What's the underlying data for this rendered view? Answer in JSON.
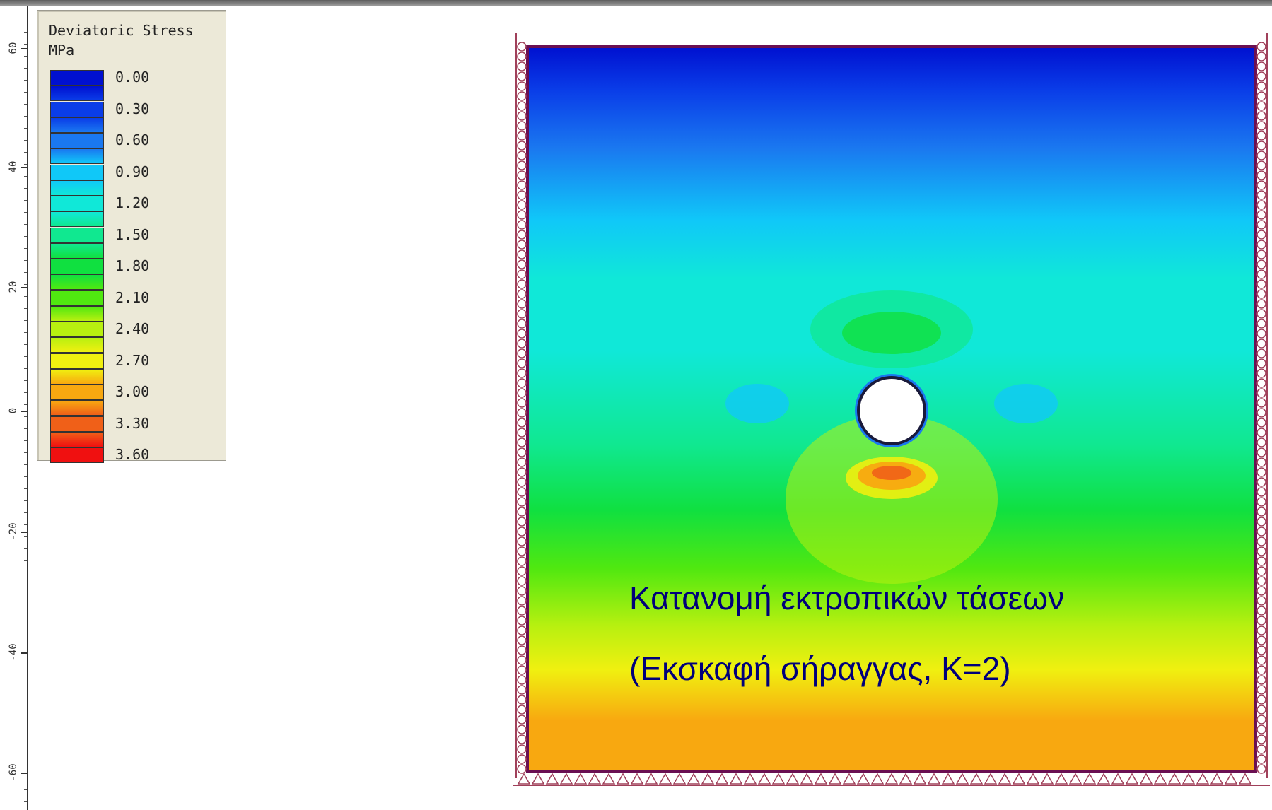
{
  "legend": {
    "title": "Deviatoric Stress",
    "unit": "MPa",
    "entries": [
      {
        "value": "0.00",
        "color": "#0010d0"
      },
      {
        "value": "0.30",
        "color": "#0a3de8"
      },
      {
        "value": "0.60",
        "color": "#1a78f0"
      },
      {
        "value": "0.90",
        "color": "#10c8f8"
      },
      {
        "value": "1.20",
        "color": "#10e8d8"
      },
      {
        "value": "1.50",
        "color": "#10e890"
      },
      {
        "value": "1.80",
        "color": "#10e040"
      },
      {
        "value": "2.10",
        "color": "#50e810"
      },
      {
        "value": "2.40",
        "color": "#b8f010"
      },
      {
        "value": "2.70",
        "color": "#f0f010"
      },
      {
        "value": "3.00",
        "color": "#f8a810"
      },
      {
        "value": "3.30",
        "color": "#f06018"
      },
      {
        "value": "3.60",
        "color": "#f01010"
      }
    ]
  },
  "ruler": {
    "ticks": [
      "60",
      "40",
      "20",
      "0",
      "-20",
      "-40",
      "-60"
    ]
  },
  "overlay": {
    "line1": "Κατανομή εκτροπικών τάσεων",
    "line2": "(Εκσκαφή σήραγγας, K=2)"
  },
  "colors": {
    "boundary": "#6a0f52",
    "support": "#a0405a",
    "tunnel_outline": "#1a1a3a"
  }
}
